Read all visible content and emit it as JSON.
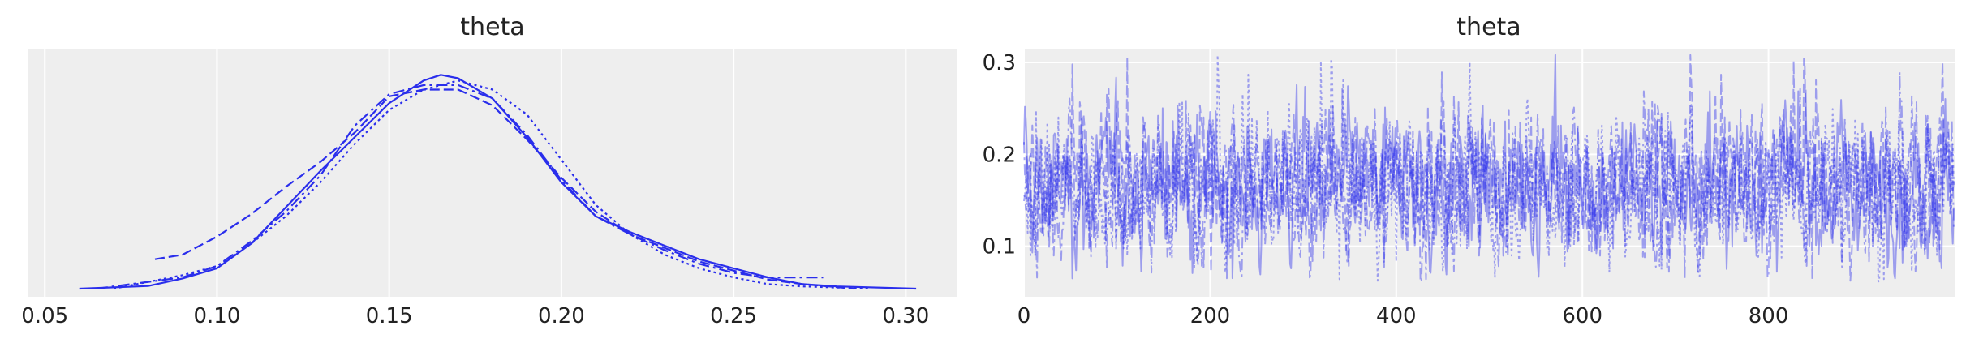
{
  "chart_data": [
    {
      "type": "line",
      "subtype": "kde",
      "title": "theta",
      "xlabel": "",
      "ylabel": "",
      "xlim": [
        0.045,
        0.315
      ],
      "x_ticks": [
        "0.05",
        "0.10",
        "0.15",
        "0.20",
        "0.25",
        "0.30"
      ],
      "y_ticks": [],
      "grid": "vertical",
      "color": "#2a2eec",
      "background": "#eeeeee",
      "series": [
        {
          "line_style": "solid",
          "points": [
            [
              0.06,
              0.0
            ],
            [
              0.08,
              0.012
            ],
            [
              0.09,
              0.045
            ],
            [
              0.1,
              0.09
            ],
            [
              0.11,
              0.2
            ],
            [
              0.12,
              0.36
            ],
            [
              0.13,
              0.52
            ],
            [
              0.14,
              0.67
            ],
            [
              0.15,
              0.82
            ],
            [
              0.16,
              0.92
            ],
            [
              0.165,
              0.945
            ],
            [
              0.17,
              0.93
            ],
            [
              0.18,
              0.84
            ],
            [
              0.19,
              0.67
            ],
            [
              0.2,
              0.47
            ],
            [
              0.21,
              0.32
            ],
            [
              0.22,
              0.25
            ],
            [
              0.23,
              0.19
            ],
            [
              0.24,
              0.13
            ],
            [
              0.25,
              0.09
            ],
            [
              0.26,
              0.05
            ],
            [
              0.27,
              0.02
            ],
            [
              0.28,
              0.01
            ],
            [
              0.303,
              0.0
            ]
          ]
        },
        {
          "line_style": "dashed",
          "points": [
            [
              0.082,
              0.13
            ],
            [
              0.09,
              0.15
            ],
            [
              0.1,
              0.23
            ],
            [
              0.11,
              0.33
            ],
            [
              0.12,
              0.45
            ],
            [
              0.13,
              0.56
            ],
            [
              0.14,
              0.69
            ],
            [
              0.15,
              0.85
            ],
            [
              0.16,
              0.88
            ],
            [
              0.17,
              0.88
            ],
            [
              0.18,
              0.81
            ],
            [
              0.19,
              0.66
            ],
            [
              0.2,
              0.49
            ],
            [
              0.21,
              0.34
            ],
            [
              0.22,
              0.24
            ],
            [
              0.23,
              0.18
            ],
            [
              0.24,
              0.12
            ],
            [
              0.25,
              0.08
            ],
            [
              0.26,
              0.04
            ],
            [
              0.27,
              0.02
            ],
            [
              0.285,
              0.0
            ]
          ]
        },
        {
          "line_style": "dashdot",
          "points": [
            [
              0.065,
              0.0
            ],
            [
              0.08,
              0.03
            ],
            [
              0.09,
              0.05
            ],
            [
              0.1,
              0.1
            ],
            [
              0.11,
              0.21
            ],
            [
              0.12,
              0.34
            ],
            [
              0.13,
              0.5
            ],
            [
              0.14,
              0.72
            ],
            [
              0.15,
              0.86
            ],
            [
              0.16,
              0.9
            ],
            [
              0.17,
              0.9
            ],
            [
              0.18,
              0.84
            ],
            [
              0.19,
              0.68
            ],
            [
              0.2,
              0.48
            ],
            [
              0.21,
              0.32
            ],
            [
              0.22,
              0.24
            ],
            [
              0.23,
              0.17
            ],
            [
              0.24,
              0.11
            ],
            [
              0.25,
              0.07
            ],
            [
              0.26,
              0.05
            ],
            [
              0.27,
              0.05
            ],
            [
              0.276,
              0.05
            ]
          ]
        },
        {
          "line_style": "dotted",
          "points": [
            [
              0.07,
              0.0
            ],
            [
              0.08,
              0.03
            ],
            [
              0.09,
              0.06
            ],
            [
              0.1,
              0.1
            ],
            [
              0.11,
              0.2
            ],
            [
              0.12,
              0.32
            ],
            [
              0.13,
              0.47
            ],
            [
              0.14,
              0.64
            ],
            [
              0.15,
              0.79
            ],
            [
              0.16,
              0.88
            ],
            [
              0.17,
              0.92
            ],
            [
              0.18,
              0.88
            ],
            [
              0.19,
              0.77
            ],
            [
              0.2,
              0.57
            ],
            [
              0.21,
              0.37
            ],
            [
              0.22,
              0.24
            ],
            [
              0.23,
              0.15
            ],
            [
              0.24,
              0.09
            ],
            [
              0.25,
              0.05
            ],
            [
              0.26,
              0.02
            ],
            [
              0.27,
              0.01
            ],
            [
              0.28,
              0.005
            ],
            [
              0.29,
              0.0
            ]
          ]
        }
      ]
    },
    {
      "type": "line",
      "subtype": "trace",
      "title": "theta",
      "xlabel": "",
      "ylabel": "",
      "xlim": [
        0,
        1000
      ],
      "ylim": [
        0.045,
        0.315
      ],
      "x_ticks": [
        "0",
        "200",
        "400",
        "600",
        "800"
      ],
      "y_ticks": [
        "0.1",
        "0.2",
        "0.3"
      ],
      "grid": "both",
      "color": "#2a2eec",
      "background": "#eeeeee",
      "chains": 4,
      "draws": 1000,
      "series_styles": [
        "solid",
        "dashed",
        "dashdot",
        "dotted"
      ],
      "typical_range": [
        0.08,
        0.3
      ],
      "center": 0.165
    }
  ]
}
